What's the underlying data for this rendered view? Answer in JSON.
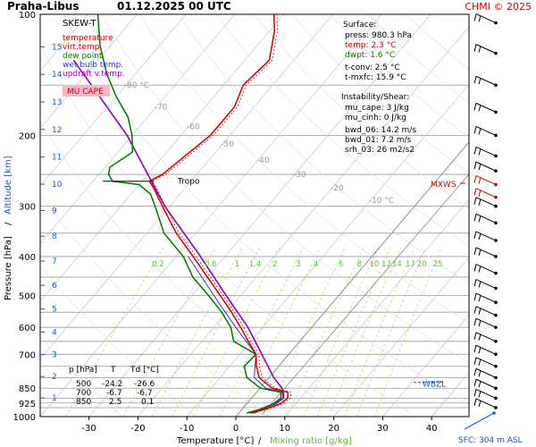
{
  "header": {
    "station": "Praha-Libus",
    "datetime": "01.12.2025 00 UTC",
    "credit": "CHMI © 2025"
  },
  "chart_data": {
    "type": "skew-t",
    "title": "SKEW-T",
    "xlabel": "Temperature [°C]",
    "xlabel_sep": "/",
    "xlabel2": "Mixing ratio [g/kg]",
    "ylabel": "Pressure [hPa]",
    "ylabel_sep": "/",
    "ylabel2": "Altitude [km]",
    "x_ticks": [
      "-30",
      "-20",
      "-10",
      "0",
      "10",
      "20",
      "30",
      "40"
    ],
    "p_ticks": [
      "100",
      "200",
      "300",
      "400",
      "500",
      "600",
      "700",
      "850",
      "925",
      "1000"
    ],
    "isobars_hpa": [
      100,
      150,
      200,
      250,
      300,
      350,
      400,
      450,
      500,
      550,
      600,
      650,
      700,
      750,
      800,
      850,
      900,
      925,
      950,
      1000
    ],
    "alt_ticks_km": [
      "15",
      "14",
      "13",
      "12",
      "11",
      "10",
      "9",
      "8",
      "7",
      "6",
      "5",
      "4",
      "3",
      "2",
      "1"
    ],
    "isotherm_labels": [
      "-80 °C",
      "-70",
      "-60",
      "-50",
      "-40",
      "-30",
      "-20",
      "-10 °C"
    ],
    "mixing_ratio_labels": [
      "0.2",
      "0.6",
      "1",
      "1.4",
      "2",
      "3",
      "4",
      "6",
      "8",
      "10",
      "12",
      "14",
      "17",
      "20",
      "25"
    ],
    "legend": [
      {
        "label": "temperature",
        "color": "#cc0000"
      },
      {
        "label": "virt.temp.",
        "color": "#cc0000"
      },
      {
        "label": "dew point",
        "color": "#007700"
      },
      {
        "label": "wet bulb temp.",
        "color": "#3333cc"
      },
      {
        "label": "updraft v.temp.",
        "color": "#9900aa"
      }
    ],
    "mu_cape_label": "MU CAPE",
    "tropo_label": "Tropo",
    "tropo_p": 260,
    "mxws_label": "MXWS",
    "mxws_p": 263,
    "wbzl_label": "WBZL",
    "wbzl_p": 830,
    "sfc_label": "SFC: 304 m ASL",
    "surface": {
      "title": "Surface:",
      "press": "press: 980.3 hPa",
      "temp": "temp: 2.3 °C",
      "dwpt": "dwpt: 1.6 °C",
      "tconv": "t-conv: 2.5 °C",
      "tmxfc": "t-mxfc: 15.9 °C"
    },
    "instability": {
      "title": "Instability/Shear:",
      "mu_cape": "mu_cape: 3 J/kg",
      "mu_cinh": "mu_cinh: 0 J/kg",
      "bwd06": "bwd_06: 14.2 m/s",
      "bwd01": "bwd_01: 7.2 m/s",
      "srh03": "srh_03: 26 m2/s2"
    },
    "table": {
      "headers": [
        "p [hPa]",
        "T",
        "Td [°C]"
      ],
      "rows": [
        [
          "500",
          "-24.2",
          "-26.6"
        ],
        [
          "700",
          "-6.7",
          "-6.7"
        ],
        [
          "850",
          "2.5",
          "0.1"
        ]
      ]
    },
    "temperature": [
      {
        "p": 980,
        "t": 2.3
      },
      {
        "p": 960,
        "t": 4.5
      },
      {
        "p": 930,
        "t": 6.8
      },
      {
        "p": 900,
        "t": 7.4
      },
      {
        "p": 870,
        "t": 6.4
      },
      {
        "p": 850,
        "t": 2.5
      },
      {
        "p": 800,
        "t": -2.0
      },
      {
        "p": 750,
        "t": -4.5
      },
      {
        "p": 700,
        "t": -6.7
      },
      {
        "p": 650,
        "t": -10.5
      },
      {
        "p": 600,
        "t": -14.5
      },
      {
        "p": 550,
        "t": -19.0
      },
      {
        "p": 500,
        "t": -24.2
      },
      {
        "p": 450,
        "t": -30.0
      },
      {
        "p": 400,
        "t": -36.5
      },
      {
        "p": 350,
        "t": -44.0
      },
      {
        "p": 300,
        "t": -51.5
      },
      {
        "p": 270,
        "t": -56.5
      },
      {
        "p": 260,
        "t": -58.5
      },
      {
        "p": 250,
        "t": -57.0
      },
      {
        "p": 200,
        "t": -54.0
      },
      {
        "p": 170,
        "t": -54.0
      },
      {
        "p": 150,
        "t": -56.0
      },
      {
        "p": 130,
        "t": -55.0
      },
      {
        "p": 110,
        "t": -59.0
      },
      {
        "p": 100,
        "t": -62.0
      }
    ],
    "dewpoint": [
      {
        "p": 980,
        "t": 1.6
      },
      {
        "p": 960,
        "t": 3.6
      },
      {
        "p": 930,
        "t": 5.4
      },
      {
        "p": 900,
        "t": 6.0
      },
      {
        "p": 870,
        "t": 5.0
      },
      {
        "p": 850,
        "t": 0.1
      },
      {
        "p": 800,
        "t": -4.5
      },
      {
        "p": 750,
        "t": -7.0
      },
      {
        "p": 700,
        "t": -6.7
      },
      {
        "p": 650,
        "t": -13.5
      },
      {
        "p": 600,
        "t": -16.5
      },
      {
        "p": 550,
        "t": -21.0
      },
      {
        "p": 500,
        "t": -26.6
      },
      {
        "p": 450,
        "t": -33.0
      },
      {
        "p": 400,
        "t": -38.5
      },
      {
        "p": 350,
        "t": -46.5
      },
      {
        "p": 300,
        "t": -53.0
      },
      {
        "p": 280,
        "t": -56.0
      },
      {
        "p": 265,
        "t": -60.0
      },
      {
        "p": 260,
        "t": -66.0
      },
      {
        "p": 250,
        "t": -68.0
      },
      {
        "p": 240,
        "t": -69.0
      },
      {
        "p": 220,
        "t": -67.0
      },
      {
        "p": 200,
        "t": -70.0
      },
      {
        "p": 180,
        "t": -74.0
      },
      {
        "p": 160,
        "t": -80.0
      },
      {
        "p": 140,
        "t": -86.0
      },
      {
        "p": 120,
        "t": -92.0
      },
      {
        "p": 100,
        "t": -98.0
      }
    ],
    "updraft": [
      {
        "p": 980,
        "t": 3.0
      },
      {
        "p": 930,
        "t": 5.5
      },
      {
        "p": 900,
        "t": 6.5
      },
      {
        "p": 850,
        "t": 4.5
      },
      {
        "p": 800,
        "t": 1.0
      },
      {
        "p": 700,
        "t": -5.5
      },
      {
        "p": 600,
        "t": -13.0
      },
      {
        "p": 500,
        "t": -23.0
      },
      {
        "p": 400,
        "t": -35.0
      },
      {
        "p": 300,
        "t": -51.0
      },
      {
        "p": 250,
        "t": -60.0
      },
      {
        "p": 200,
        "t": -71.0
      },
      {
        "p": 150,
        "t": -87.0
      },
      {
        "p": 130,
        "t": -95.0
      }
    ],
    "wetbulb": [
      {
        "p": 980,
        "t": 1.9
      },
      {
        "p": 930,
        "t": 6.0
      },
      {
        "p": 900,
        "t": 6.6
      },
      {
        "p": 870,
        "t": 5.6
      },
      {
        "p": 850,
        "t": 1.2
      },
      {
        "p": 800,
        "t": -3.0
      },
      {
        "p": 700,
        "t": -6.7
      },
      {
        "p": 600,
        "t": -15.5
      },
      {
        "p": 500,
        "t": -25.5
      },
      {
        "p": 400,
        "t": -37.5
      }
    ],
    "wind_pressures": [
      105,
      125,
      150,
      175,
      200,
      225,
      245,
      265,
      285,
      300,
      330,
      365,
      400,
      440,
      480,
      520,
      560,
      600,
      650,
      700,
      750,
      800,
      850,
      900,
      950
    ]
  }
}
